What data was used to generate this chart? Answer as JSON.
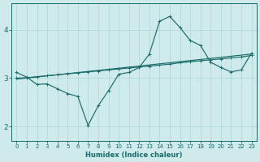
{
  "xlabel": "Humidex (Indice chaleur)",
  "ylabel": "",
  "bg_color": "#ceeaea",
  "line_color": "#1a6b6b",
  "grid_color": "#aed4d4",
  "xlim": [
    -0.5,
    23.5
  ],
  "ylim": [
    1.7,
    4.55
  ],
  "yticks": [
    2,
    3,
    4
  ],
  "xticks": [
    0,
    1,
    2,
    3,
    4,
    5,
    6,
    7,
    8,
    9,
    10,
    11,
    12,
    13,
    14,
    15,
    16,
    17,
    18,
    19,
    20,
    21,
    22,
    23
  ],
  "curve1_x": [
    0,
    1,
    2,
    3,
    4,
    5,
    6,
    7,
    8,
    9,
    10,
    11,
    12,
    13,
    14,
    15,
    16,
    17,
    18,
    19,
    20,
    21,
    22,
    23
  ],
  "curve1_y": [
    3.12,
    3.02,
    2.87,
    2.88,
    2.78,
    2.68,
    2.62,
    2.02,
    2.43,
    2.74,
    3.08,
    3.12,
    3.22,
    3.5,
    4.18,
    4.28,
    4.05,
    3.78,
    3.68,
    3.33,
    3.22,
    3.13,
    3.17,
    3.52
  ],
  "curve2_x": [
    0,
    1,
    2,
    3,
    4,
    5,
    6,
    7,
    8,
    9,
    10,
    11,
    12,
    13,
    14,
    15,
    16,
    17,
    18,
    19,
    20,
    21,
    22,
    23
  ],
  "curve2_y": [
    3.0,
    3.01,
    3.03,
    3.05,
    3.07,
    3.09,
    3.11,
    3.13,
    3.15,
    3.17,
    3.19,
    3.21,
    3.23,
    3.25,
    3.27,
    3.29,
    3.32,
    3.34,
    3.36,
    3.38,
    3.4,
    3.42,
    3.44,
    3.47
  ],
  "curve3_x": [
    0,
    23
  ],
  "curve3_y": [
    2.98,
    3.5
  ]
}
